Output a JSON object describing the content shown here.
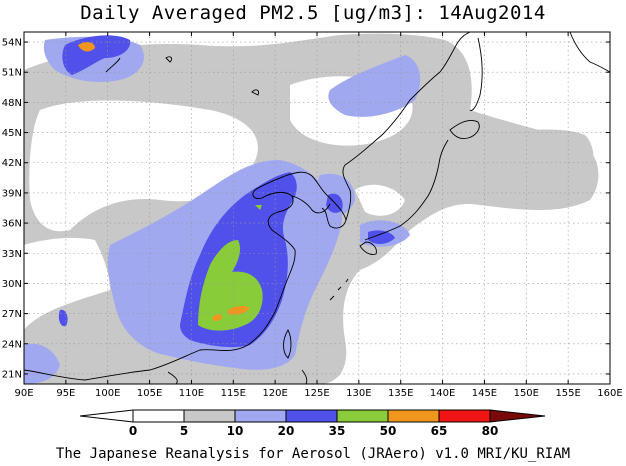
{
  "title": "Daily Averaged PM2.5 [ug/m3]: 14Aug2014",
  "credit": "The Japanese Reanalysis for Aerosol (JRAero) v1.0 MRI/KU_RIAM",
  "map": {
    "lon_range": [
      90,
      160
    ],
    "lat_range": [
      20,
      55
    ],
    "lon_ticks": [
      "90E",
      "95E",
      "100E",
      "105E",
      "110E",
      "115E",
      "120E",
      "125E",
      "130E",
      "135E",
      "140E",
      "145E",
      "150E",
      "155E",
      "160E"
    ],
    "lat_ticks": [
      "21N",
      "24N",
      "27N",
      "30N",
      "33N",
      "36N",
      "39N",
      "42N",
      "45N",
      "48N",
      "51N",
      "54N"
    ],
    "gridlines": true
  },
  "colorbar": {
    "levels": [
      "0",
      "5",
      "10",
      "20",
      "35",
      "50",
      "65",
      "80"
    ],
    "colors": {
      "lt0": "#ffffff",
      "0_5": "#ffffff",
      "5_10": "#c8c8c8",
      "10_20": "#a0a8f0",
      "20_35": "#5050ea",
      "35_50": "#88cc3a",
      "50_65": "#f0961e",
      "65_80": "#f01414",
      "gt80": "#7a0a0a"
    }
  }
}
